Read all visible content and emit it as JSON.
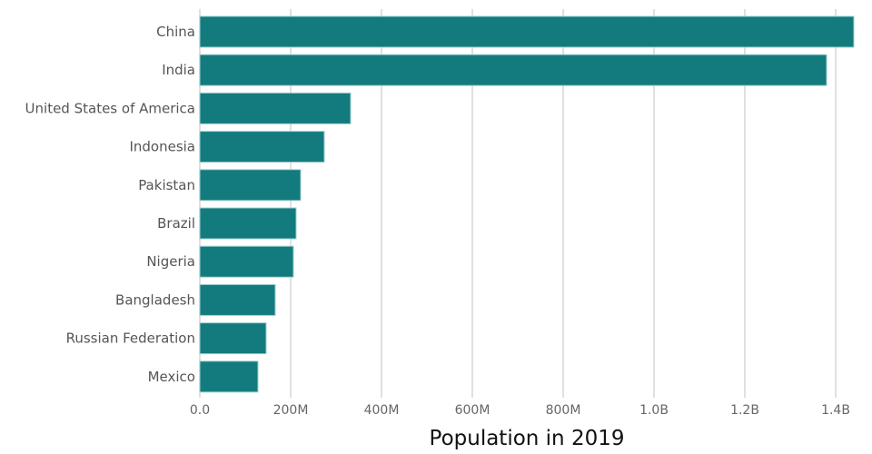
{
  "chart_data": {
    "type": "bar",
    "orientation": "horizontal",
    "title": "",
    "xlabel": "Population in 2019",
    "ylabel": "",
    "categories": [
      "China",
      "India",
      "United States of America",
      "Indonesia",
      "Pakistan",
      "Brazil",
      "Nigeria",
      "Bangladesh",
      "Russian Federation",
      "Mexico"
    ],
    "values": [
      1440000000,
      1380000000,
      332000000,
      274000000,
      222000000,
      212000000,
      206000000,
      166000000,
      146000000,
      128000000
    ],
    "xlim": [
      0,
      1440000000
    ],
    "xticks": [
      0,
      200000000,
      400000000,
      600000000,
      800000000,
      1000000000,
      1200000000,
      1400000000
    ],
    "xtick_labels": [
      "0.0",
      "200M",
      "400M",
      "600M",
      "800M",
      "1.0B",
      "1.2B",
      "1.4B"
    ],
    "grid": "vertical",
    "legend": "none",
    "bar_color": "#137b7d"
  }
}
